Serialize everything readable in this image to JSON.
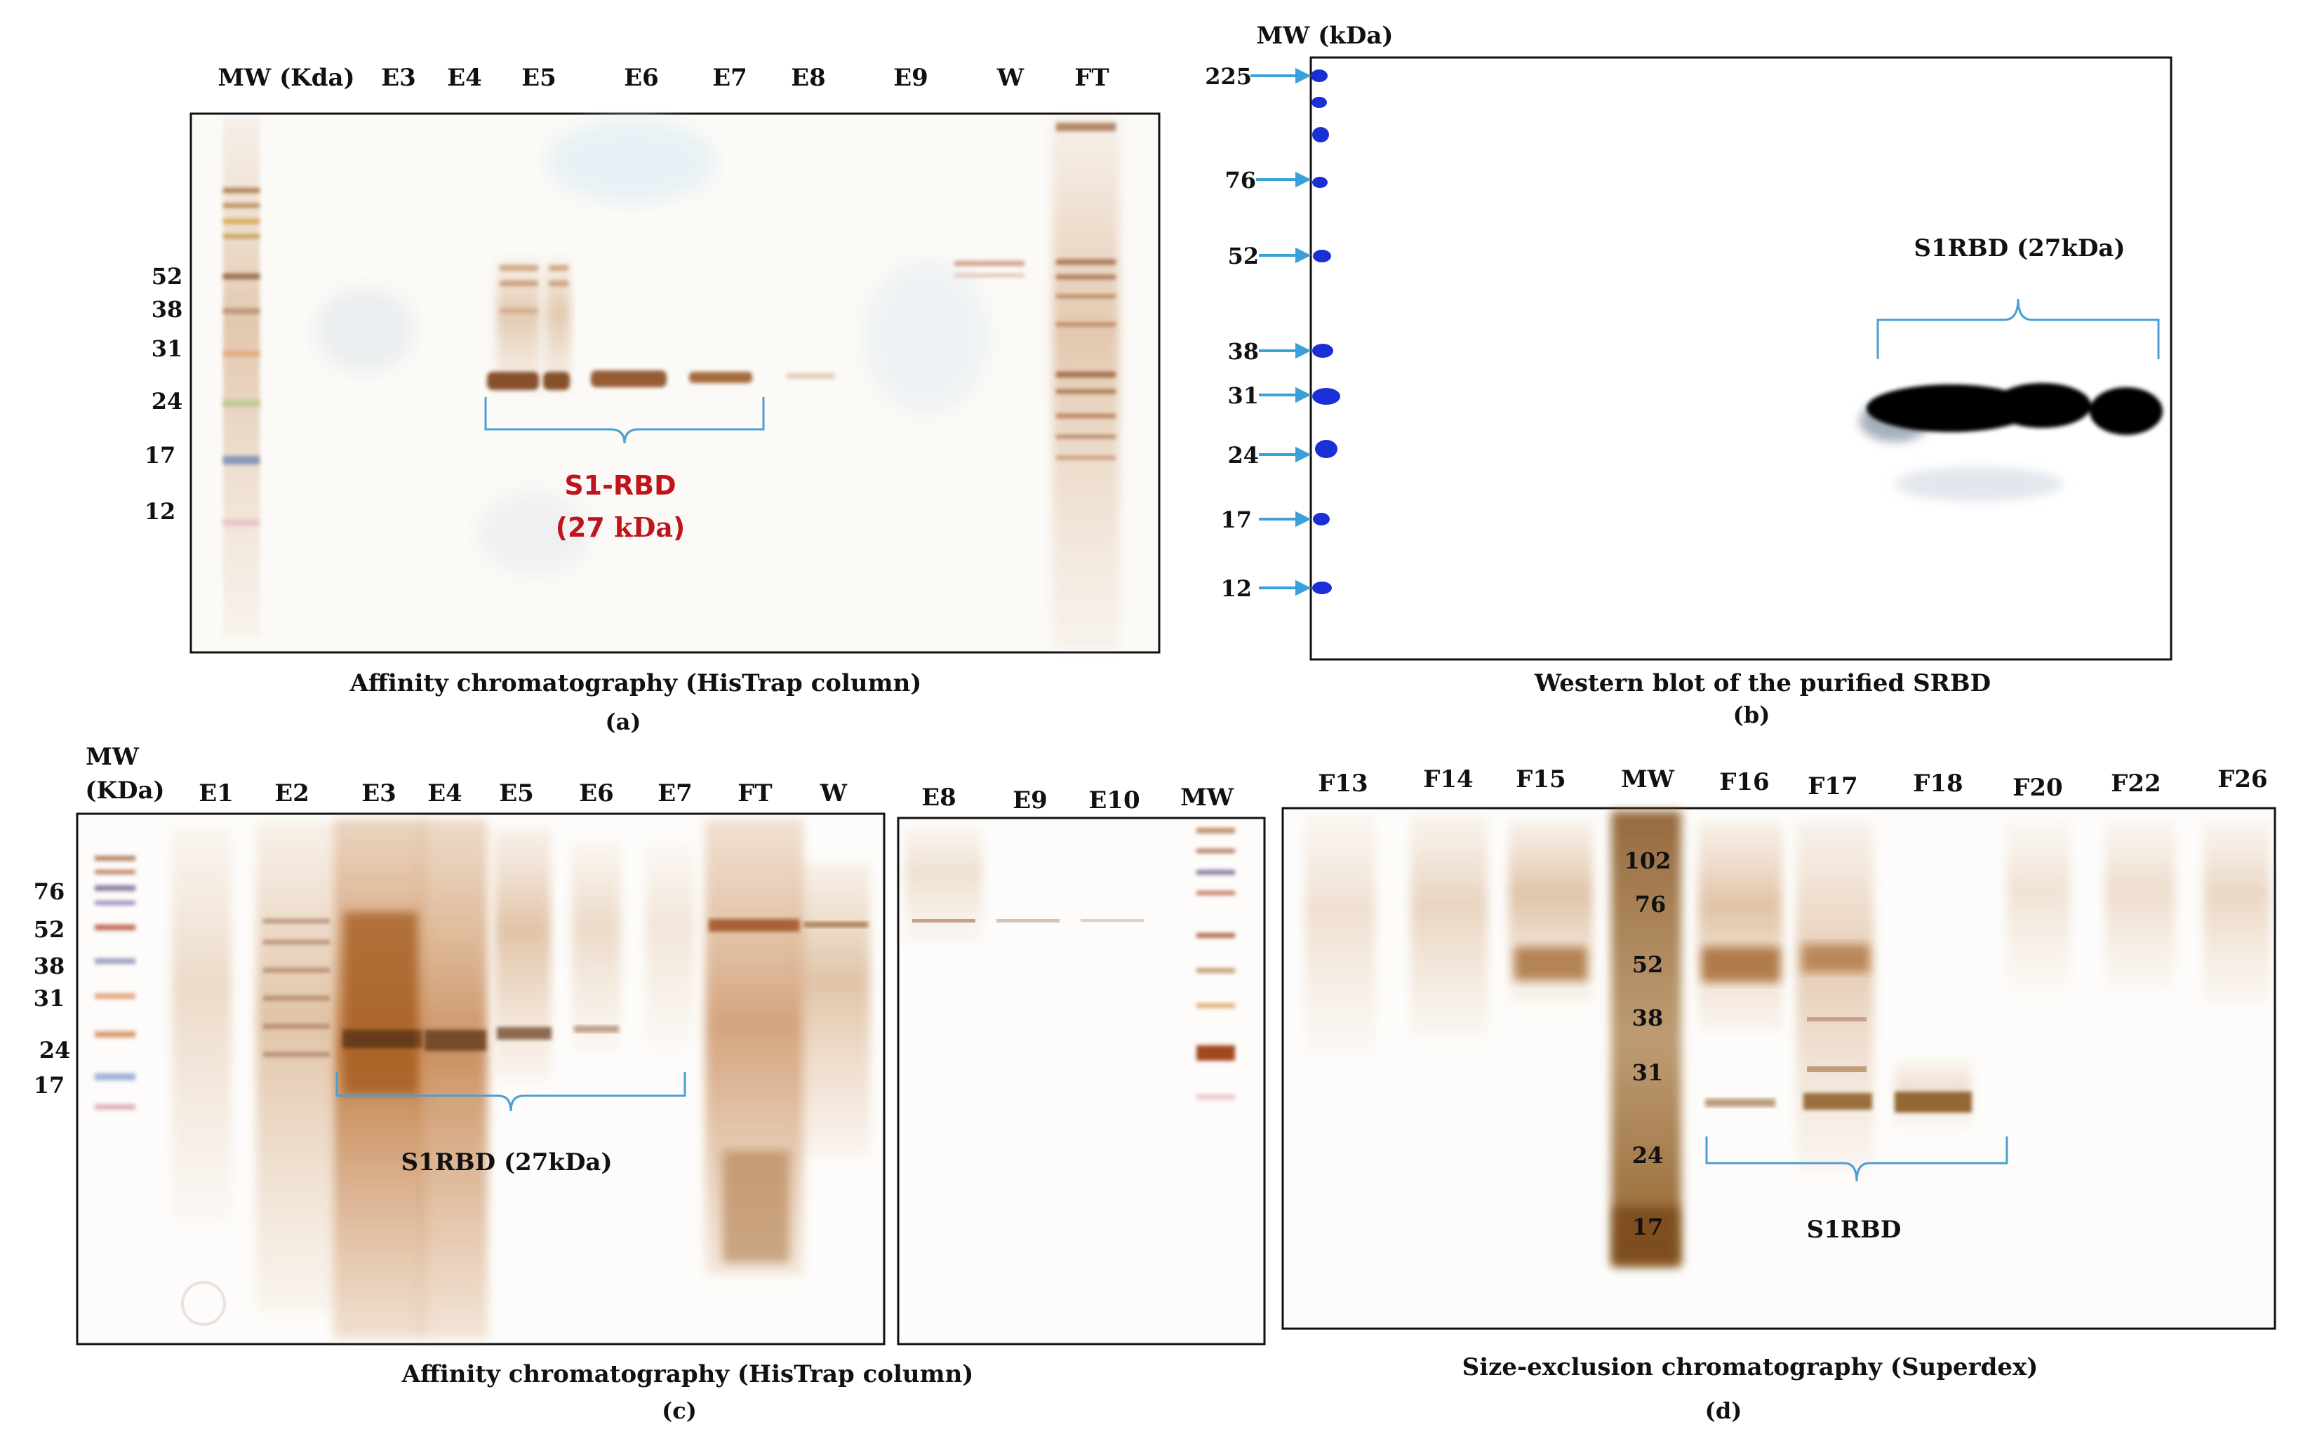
{
  "colors": {
    "border": "#111111",
    "bracket": "#4a9fd4",
    "arrow": "#3aa0d8",
    "marker_blue": "#1a2fd6",
    "band_brown": "#8a4a1a",
    "band_dark": "#5a2c0e",
    "label_red": "#c0141c",
    "blot_black": "#050505",
    "silver_stain": "#d8a878"
  },
  "panel_a": {
    "headers": [
      "MW (Kda)",
      "E3",
      "E4",
      "E5",
      "E6",
      "E7",
      "E8",
      "E9",
      "W",
      "FT"
    ],
    "mw_ticks": [
      "52",
      "38",
      "31",
      "24",
      "17",
      "12"
    ],
    "annotation_line1": "S1-RBD",
    "annotation_line2_bold": "(27 ",
    "annotation_line2_unit": "kDa",
    "annotation_line2_close": ")",
    "caption": "Affinity chromatography (HisTrap column)",
    "letter": "(a)"
  },
  "panel_b": {
    "mw_title": "MW (kDa)",
    "mw_ticks": [
      "225",
      "76",
      "52",
      "38",
      "31",
      "24",
      "17",
      "12"
    ],
    "annotation": "S1RBD (27kDa)",
    "caption": "Western blot of the purified SRBD",
    "letter": "(b)"
  },
  "panel_c": {
    "mw_title_line1": "MW",
    "mw_title_line2": "(KDa)",
    "headers_left": [
      "E1",
      "E2",
      "E3",
      "E4",
      "E5",
      "E6",
      "E7",
      "FT",
      "W"
    ],
    "headers_right": [
      "E8",
      "E9",
      "E10",
      "MW"
    ],
    "mw_ticks": [
      "76",
      "52",
      "38",
      "31",
      "24",
      "17"
    ],
    "annotation": "S1RBD (27kDa)",
    "caption": "Affinity chromatography (HisTrap column)",
    "letter": "(c)"
  },
  "panel_d": {
    "headers": [
      "F13",
      "F14",
      "F15",
      "MW",
      "F16",
      "F17",
      "F18",
      "F20",
      "F22",
      "F26"
    ],
    "mw_ticks": [
      "102",
      "76",
      "52",
      "38",
      "31",
      "24",
      "17"
    ],
    "annotation": "S1RBD",
    "caption": "Size-exclusion chromatography (Superdex)",
    "letter": "(d)"
  }
}
